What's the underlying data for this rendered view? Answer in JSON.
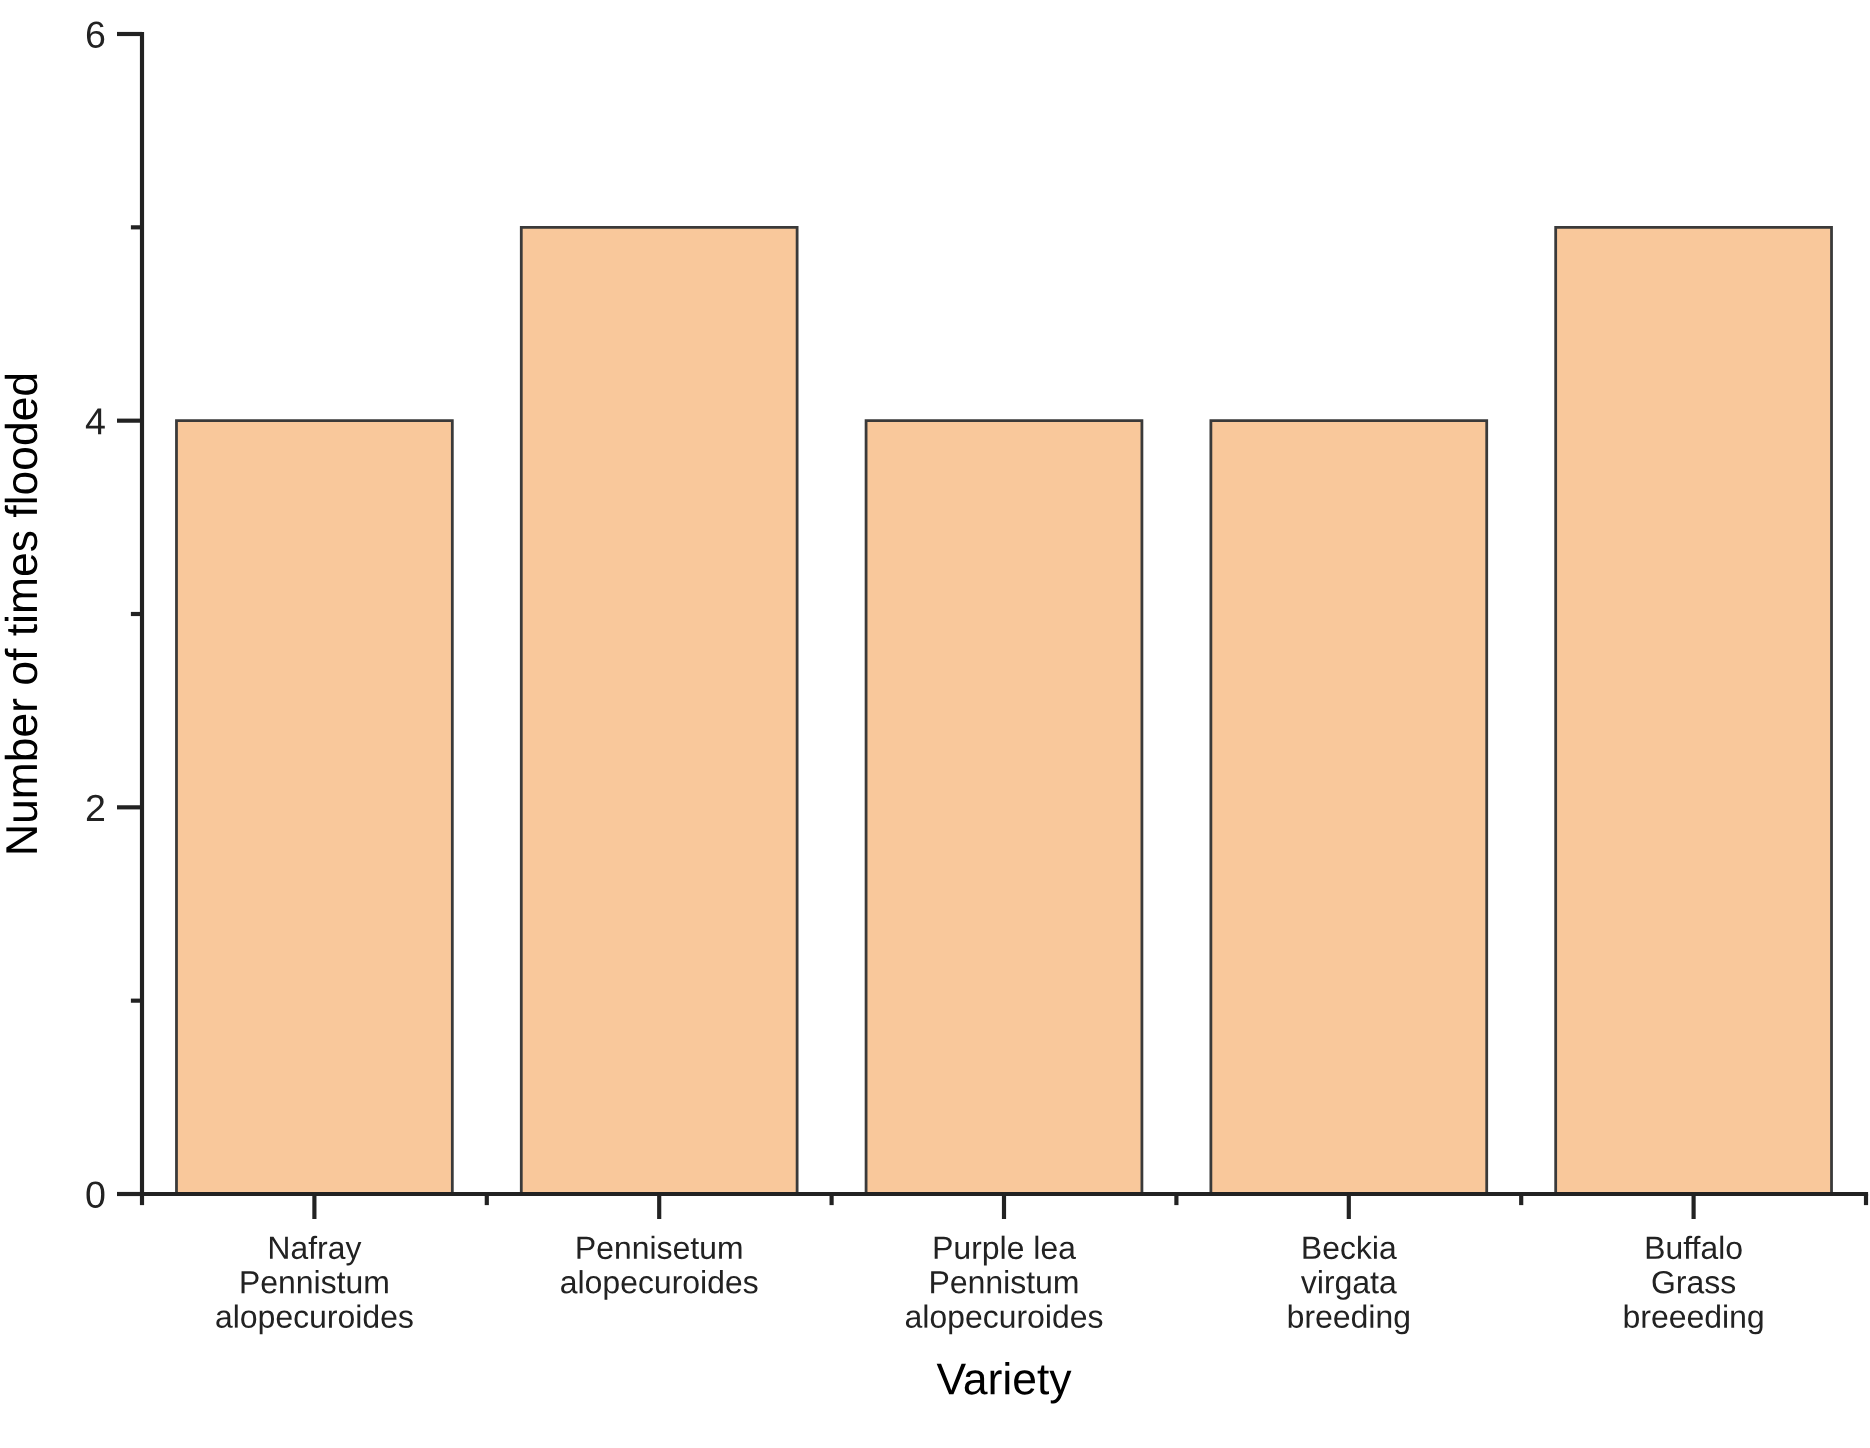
{
  "chart_data": {
    "type": "bar",
    "xlabel": "Variety",
    "ylabel": "Number of times flooded",
    "categories": [
      "Nafray\nPennistum\nalopecuroides",
      "Pennisetum\nalopecuroides",
      "Purple lea\nPennistum\nalopecuroides",
      "Beckia\nvirgata\nbreeding",
      "Buffalo\nGrass\nbreeeding"
    ],
    "values": [
      4,
      5,
      4,
      4,
      5
    ],
    "color": "#f9c89b",
    "ylim": [
      0,
      6
    ],
    "yticks": [
      0,
      {
        "value": 1,
        "label": null
      },
      2,
      {
        "value": 3,
        "label": null
      },
      4,
      {
        "value": 5,
        "label": null
      },
      6
    ]
  }
}
